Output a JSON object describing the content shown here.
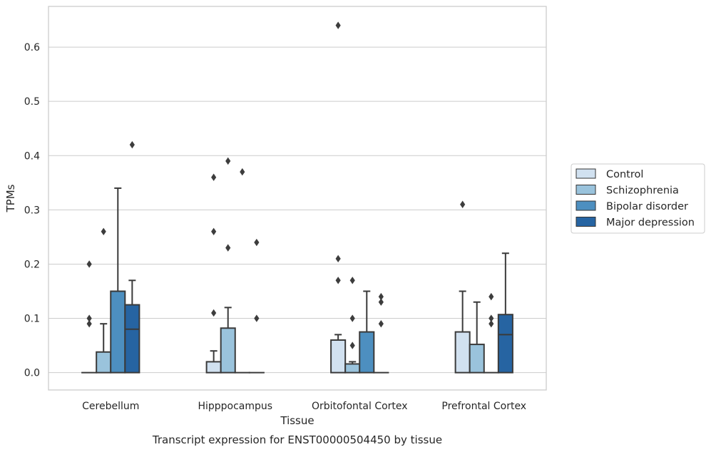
{
  "caption": "Transcript expression for ENST00000504450 by tissue",
  "colors": {
    "grid": "#cccccc",
    "frame": "#cccccc",
    "box_edge": "#3a3a3a",
    "series": [
      "#d1e1f0",
      "#9ac3dc",
      "#4d8fc0",
      "#2664a2"
    ]
  },
  "chart_data": {
    "type": "box",
    "title": "",
    "xlabel": "Tissue",
    "ylabel": "TPMs",
    "ylim": [
      -0.032,
      0.675
    ],
    "yticks": [
      0.0,
      0.1,
      0.2,
      0.3,
      0.4,
      0.5,
      0.6
    ],
    "ytick_labels": [
      "0.0",
      "0.1",
      "0.2",
      "0.3",
      "0.4",
      "0.5",
      "0.6"
    ],
    "grid": true,
    "legend_position": "right",
    "categories": [
      "Cerebellum",
      "Hipppocampus",
      "Orbitofontal Cortex",
      "Prefrontal Cortex"
    ],
    "series": [
      {
        "name": "Control",
        "boxes": [
          {
            "q1": 0.0,
            "median": 0.0,
            "q3": 0.0,
            "whisker_low": 0.0,
            "whisker_high": 0.0,
            "outliers": [
              0.2,
              0.1,
              0.09
            ]
          },
          {
            "q1": 0.0,
            "median": 0.0,
            "q3": 0.02,
            "whisker_low": 0.0,
            "whisker_high": 0.04,
            "outliers": [
              0.36,
              0.26,
              0.11
            ]
          },
          {
            "q1": 0.0,
            "median": 0.0,
            "q3": 0.06,
            "whisker_low": 0.0,
            "whisker_high": 0.07,
            "outliers": [
              0.64,
              0.21,
              0.17
            ]
          },
          {
            "q1": 0.0,
            "median": 0.0,
            "q3": 0.075,
            "whisker_low": 0.0,
            "whisker_high": 0.15,
            "outliers": [
              0.31
            ]
          }
        ]
      },
      {
        "name": "Schizophrenia",
        "boxes": [
          {
            "q1": 0.0,
            "median": 0.0,
            "q3": 0.038,
            "whisker_low": 0.0,
            "whisker_high": 0.09,
            "outliers": [
              0.26
            ]
          },
          {
            "q1": 0.0,
            "median": 0.0,
            "q3": 0.082,
            "whisker_low": 0.0,
            "whisker_high": 0.12,
            "outliers": [
              0.39,
              0.23
            ]
          },
          {
            "q1": 0.0,
            "median": 0.0,
            "q3": 0.016,
            "whisker_low": 0.0,
            "whisker_high": 0.02,
            "outliers": [
              0.17,
              0.1,
              0.05
            ]
          },
          {
            "q1": 0.0,
            "median": 0.0,
            "q3": 0.052,
            "whisker_low": 0.0,
            "whisker_high": 0.13,
            "outliers": []
          }
        ]
      },
      {
        "name": "Bipolar disorder",
        "boxes": [
          {
            "q1": 0.0,
            "median": 0.0,
            "q3": 0.15,
            "whisker_low": 0.0,
            "whisker_high": 0.34,
            "outliers": []
          },
          {
            "q1": 0.0,
            "median": 0.0,
            "q3": 0.0,
            "whisker_low": 0.0,
            "whisker_high": 0.0,
            "outliers": [
              0.37
            ]
          },
          {
            "q1": 0.0,
            "median": 0.0,
            "q3": 0.075,
            "whisker_low": 0.0,
            "whisker_high": 0.15,
            "outliers": []
          },
          {
            "q1": 0.0,
            "median": 0.0,
            "q3": 0.0,
            "whisker_low": 0.0,
            "whisker_high": 0.0,
            "outliers": [
              0.14,
              0.1,
              0.09
            ]
          }
        ]
      },
      {
        "name": "Major depression",
        "boxes": [
          {
            "q1": 0.0,
            "median": 0.08,
            "q3": 0.125,
            "whisker_low": 0.0,
            "whisker_high": 0.17,
            "outliers": [
              0.42
            ]
          },
          {
            "q1": 0.0,
            "median": 0.0,
            "q3": 0.0,
            "whisker_low": 0.0,
            "whisker_high": 0.0,
            "outliers": [
              0.24,
              0.1
            ]
          },
          {
            "q1": 0.0,
            "median": 0.0,
            "q3": 0.0,
            "whisker_low": 0.0,
            "whisker_high": 0.0,
            "outliers": [
              0.14,
              0.13,
              0.09
            ]
          },
          {
            "q1": 0.0,
            "median": 0.07,
            "q3": 0.107,
            "whisker_low": 0.0,
            "whisker_high": 0.22,
            "outliers": []
          }
        ]
      }
    ]
  }
}
